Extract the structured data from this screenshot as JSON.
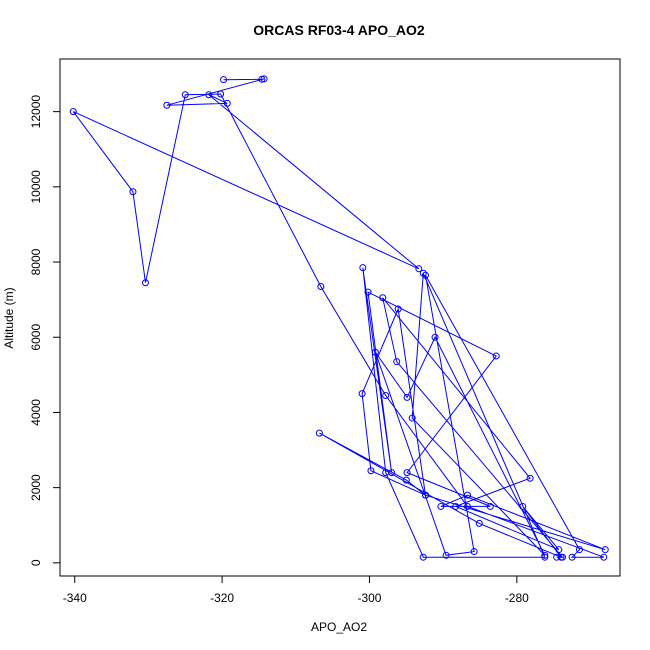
{
  "chart_data": {
    "type": "line",
    "title": "ORCAS RF03-4 APO_AO2",
    "xlabel": "APO_AO2",
    "ylabel": "Altitude (m)",
    "xlim": [
      -342,
      -266
    ],
    "ylim": [
      -350,
      13400
    ],
    "x_ticks": [
      -340,
      -320,
      -300,
      -280
    ],
    "y_ticks": [
      0,
      2000,
      4000,
      6000,
      8000,
      10000,
      12000
    ],
    "grid": false,
    "legend": "none",
    "colors": {
      "series": "#0000ff",
      "axis": "#000000",
      "background": "#ffffff"
    },
    "series": [
      {
        "marker": "open-circle",
        "points": [
          [
            -319.8,
            12850
          ],
          [
            -314.6,
            12860
          ],
          [
            -314.3,
            12870
          ],
          [
            -327.5,
            12170
          ],
          [
            -319.3,
            12220
          ],
          [
            -321.8,
            12450
          ],
          [
            -293.3,
            7820
          ],
          [
            -340.2,
            12000
          ],
          [
            -332.1,
            9870
          ],
          [
            -330.4,
            7450
          ],
          [
            -325.0,
            12450
          ],
          [
            -320.2,
            12470
          ],
          [
            -306.6,
            7350
          ],
          [
            -297.8,
            4450
          ],
          [
            -286.7,
            1500
          ],
          [
            -268.2,
            150
          ],
          [
            -272.5,
            150
          ],
          [
            -271.5,
            350
          ],
          [
            -292.4,
            7650
          ],
          [
            -285.8,
            300
          ],
          [
            -289.6,
            200
          ],
          [
            -299.2,
            5600
          ],
          [
            -294.9,
            4400
          ],
          [
            -291.1,
            6000
          ],
          [
            -276.2,
            200
          ],
          [
            -294.2,
            3850
          ],
          [
            -292.7,
            7700
          ],
          [
            -276.2,
            150
          ],
          [
            -292.7,
            150
          ],
          [
            -297.8,
            2400
          ],
          [
            -300.9,
            7850
          ],
          [
            -297.0,
            2400
          ],
          [
            -300.2,
            7200
          ],
          [
            -282.8,
            5500
          ],
          [
            -294.9,
            2400
          ],
          [
            -283.6,
            1500
          ],
          [
            -290.3,
            1500
          ],
          [
            -286.7,
            1800
          ],
          [
            -268.0,
            350
          ],
          [
            -292.4,
            1800
          ],
          [
            -299.8,
            2450
          ],
          [
            -301.0,
            4500
          ],
          [
            -296.1,
            6750
          ],
          [
            -292.4,
            1800
          ],
          [
            -295.0,
            2200
          ],
          [
            -306.8,
            3450
          ],
          [
            -285.1,
            1050
          ],
          [
            -274.0,
            150
          ],
          [
            -279.2,
            1500
          ],
          [
            -274.3,
            350
          ],
          [
            -288.3,
            1500
          ],
          [
            -278.2,
            2250
          ],
          [
            -298.2,
            7050
          ],
          [
            -296.3,
            5350
          ],
          [
            -273.8,
            150
          ],
          [
            -274.6,
            150
          ]
        ]
      }
    ]
  }
}
